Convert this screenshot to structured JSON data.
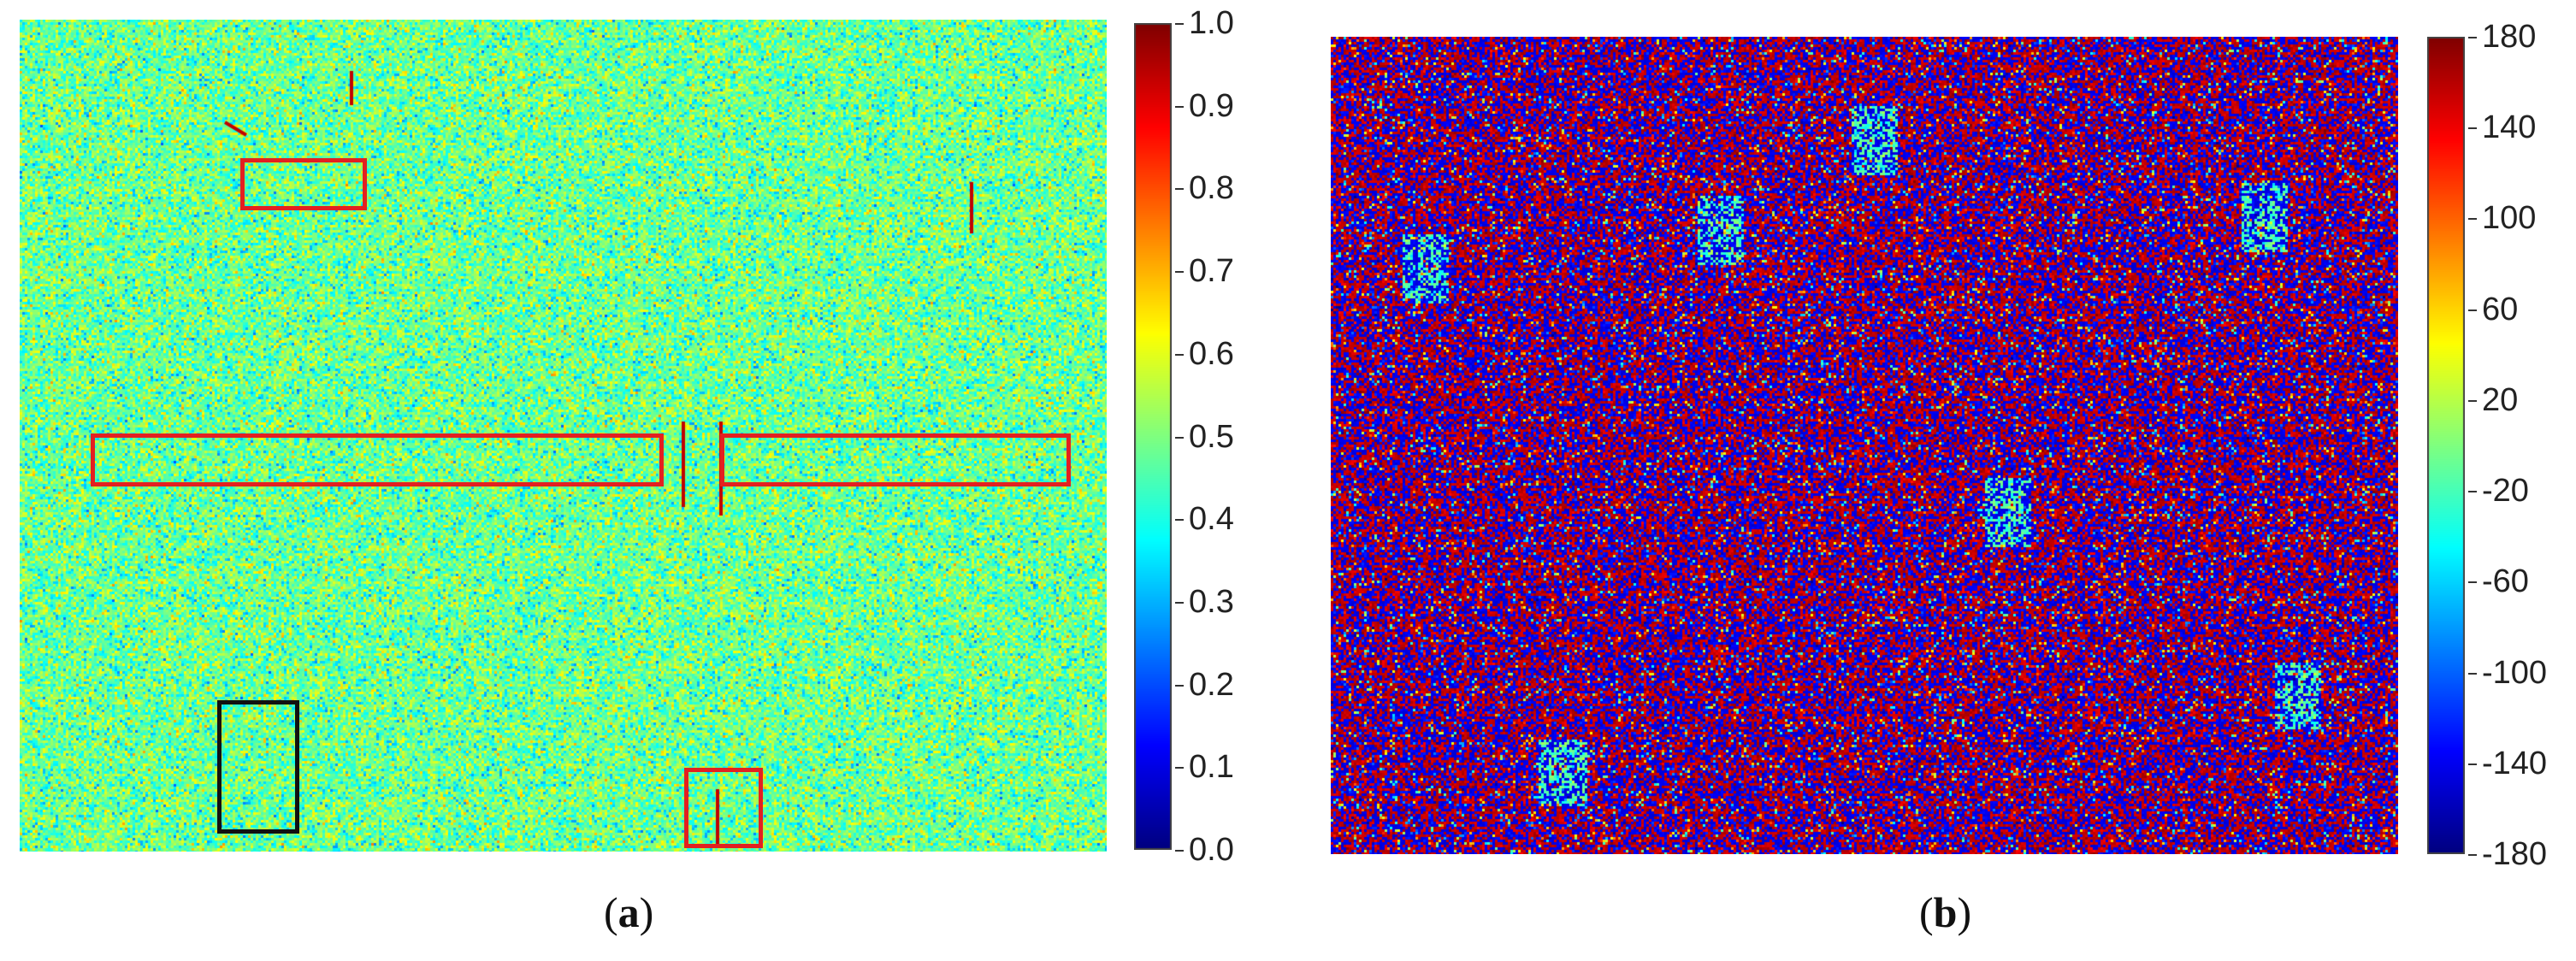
{
  "panel_a": {
    "caption_open": "(",
    "caption_letter": "a",
    "caption_close": ")",
    "colorbar_ticks": [
      "1.0",
      "0.9",
      "0.8",
      "0.7",
      "0.6",
      "0.5",
      "0.4",
      "0.3",
      "0.2",
      "0.1",
      "0.0"
    ],
    "box_colors": {
      "red": "#e32020",
      "black": "#111111"
    }
  },
  "panel_b": {
    "caption_open": "(",
    "caption_letter": "b",
    "caption_close": ")",
    "colorbar_ticks": [
      "180",
      "140",
      "100",
      "60",
      "20",
      "-20",
      "-60",
      "-100",
      "-140",
      "-180"
    ]
  },
  "colormap": "jet"
}
